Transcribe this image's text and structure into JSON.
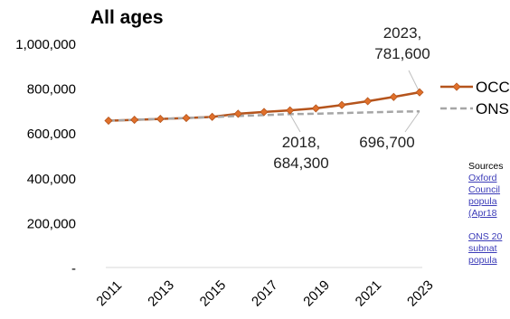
{
  "chart_data": {
    "type": "line",
    "title": "All ages",
    "x": [
      2011,
      2012,
      2013,
      2014,
      2015,
      2016,
      2017,
      2018,
      2019,
      2020,
      2021,
      2022,
      2023
    ],
    "x_tick_labels": [
      "2011",
      "2013",
      "2015",
      "2017",
      "2019",
      "2021",
      "2023"
    ],
    "y_tick_labels": [
      "1,000,000",
      "800,000",
      "600,000",
      "400,000",
      "200,000",
      "-"
    ],
    "ylim": [
      0,
      1000000
    ],
    "grid": false,
    "legend_position": "right",
    "series": [
      {
        "name": "OCC",
        "color": "#b5541c",
        "marker": "diamond",
        "line_style": "solid",
        "values": [
          655000,
          659000,
          663000,
          667000,
          672000,
          686000,
          694000,
          701000,
          710000,
          725000,
          742000,
          761000,
          781600
        ]
      },
      {
        "name": "ONS",
        "color": "#a6a6a6",
        "line_style": "dashed",
        "values": [
          655000,
          659000,
          663000,
          667000,
          671000,
          676000,
          680000,
          684300,
          686000,
          689000,
          692000,
          695000,
          696700
        ]
      }
    ],
    "annotations": [
      {
        "lines": [
          "2023,",
          "781,600"
        ]
      },
      {
        "lines": [
          "2018,",
          "684,300"
        ]
      },
      {
        "lines": [
          "696,700"
        ]
      }
    ]
  },
  "sources": {
    "label": "Sources",
    "link_groups": [
      [
        "Oxford",
        "Council",
        "popula",
        "(Apr18"
      ],
      [
        "ONS 20",
        "subnat",
        "popula"
      ]
    ]
  }
}
